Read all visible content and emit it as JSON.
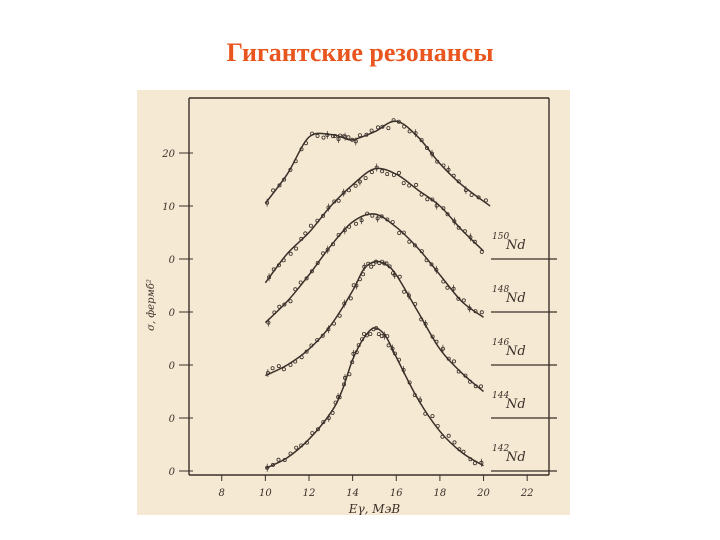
{
  "slide": {
    "title": "Гигантские резонансы",
    "title_color": "#e8551e"
  },
  "figure_background": "#f6e9d3",
  "ink_color": "#3a302a",
  "chart_data": {
    "type": "line",
    "xlabel": "Eγ, МэВ",
    "ylabel": "σ, фермб²",
    "x_ticks": [
      8,
      10,
      12,
      14,
      16,
      18,
      20,
      22
    ],
    "xlim": [
      6.5,
      23
    ],
    "y_tick_labels_top": [
      "20",
      "10",
      "0"
    ],
    "y_tick_labels_other": [
      "0",
      "0",
      "0",
      "0"
    ],
    "series_offset_step_mb": 10,
    "series": [
      {
        "name": "150Nd",
        "mass": "150",
        "element": "Nd",
        "baseline_units": 0,
        "x": [
          10,
          11,
          12,
          13,
          13.5,
          14,
          15,
          16,
          17,
          18,
          19,
          20.3
        ],
        "y": [
          10.5,
          16,
          23,
          23.5,
          23,
          22.5,
          24,
          26,
          23,
          18,
          14,
          10
        ]
      },
      {
        "name": "148Nd",
        "mass": "148",
        "element": "Nd",
        "baseline_units": -1,
        "x": [
          10,
          11,
          12,
          13,
          14,
          15,
          16,
          17,
          18,
          19,
          20
        ],
        "y": [
          5.5,
          11,
          15,
          20,
          24,
          27,
          26,
          23,
          20,
          15.5,
          11.5
        ]
      },
      {
        "name": "146Nd",
        "mass": "146",
        "element": "Nd",
        "baseline_units": -2,
        "x": [
          10,
          11,
          12,
          13,
          14,
          15,
          16,
          17,
          18,
          19,
          20
        ],
        "y": [
          8,
          12,
          17,
          22.5,
          27,
          28.5,
          26,
          22,
          17,
          12,
          9
        ]
      },
      {
        "name": "144Nd",
        "mass": "144",
        "element": "Nd",
        "baseline_units": -3,
        "x": [
          10,
          11,
          12,
          13,
          14,
          14.5,
          15,
          15.5,
          16,
          17,
          18,
          19,
          20
        ],
        "y": [
          8,
          10,
          13,
          17.5,
          24,
          28,
          29.5,
          29,
          27,
          20,
          13,
          8.5,
          5
        ]
      },
      {
        "name": "142Nd",
        "mass": "142",
        "element": "Nd",
        "baseline_units": -4,
        "x": [
          10,
          11,
          12,
          13,
          13.5,
          14,
          14.5,
          15,
          15.5,
          16,
          17,
          18,
          19,
          20
        ],
        "y": [
          0.5,
          2.5,
          6,
          11,
          15,
          21,
          25,
          27,
          25.5,
          21.5,
          13.5,
          7.5,
          3.5,
          1
        ]
      }
    ]
  }
}
